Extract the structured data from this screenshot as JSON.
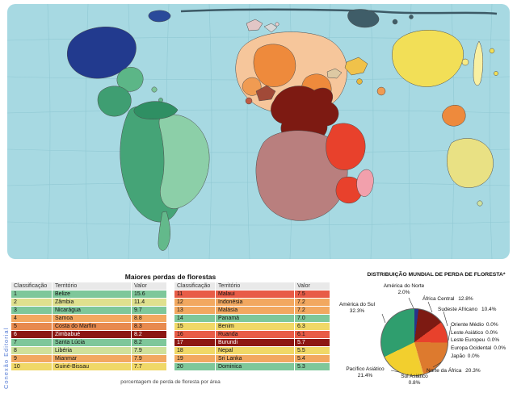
{
  "watermark": "Conexão Editorial",
  "map": {
    "ocean_color": "#a7d9e2"
  },
  "chart_data": [
    {
      "type": "table",
      "title": "Maiores perdas de florestas",
      "footnote": "porcentagem  de perda de floresta por área",
      "columns": [
        "Classificação",
        "Território",
        "Valor"
      ],
      "rows": [
        {
          "rank": "1",
          "territory": "Belize",
          "value": "15.6",
          "color": "#7ec79a"
        },
        {
          "rank": "2",
          "territory": "Zâmbia",
          "value": "11.4",
          "color": "#dfe08e"
        },
        {
          "rank": "3",
          "territory": "Nicarágua",
          "value": "9.7",
          "color": "#7ec79a"
        },
        {
          "rank": "4",
          "territory": "Samoa",
          "value": "8.8",
          "color": "#f2a860"
        },
        {
          "rank": "5",
          "territory": "Costa do Marfim",
          "value": "8.3",
          "color": "#e88a4e"
        },
        {
          "rank": "6",
          "territory": "Zimbabué",
          "value": "8.2",
          "color": "#8c1713",
          "text_color": "#ffffff"
        },
        {
          "rank": "7",
          "territory": "Santa Lúcia",
          "value": "8.2",
          "color": "#7ec79a"
        },
        {
          "rank": "8",
          "territory": "Libéria",
          "value": "7.9",
          "color": "#cfe09a"
        },
        {
          "rank": "9",
          "territory": "Mianmar",
          "value": "7.9",
          "color": "#f2a860"
        },
        {
          "rank": "10",
          "territory": "Guiné-Bissau",
          "value": "7.7",
          "color": "#f0d867"
        }
      ]
    },
    {
      "type": "table",
      "columns": [
        "Classificação",
        "Território",
        "Valor"
      ],
      "rows": [
        {
          "rank": "11",
          "territory": "Malaui",
          "value": "7.5",
          "color": "#e85c47"
        },
        {
          "rank": "12",
          "territory": "Indonésia",
          "value": "7.2",
          "color": "#f2a860"
        },
        {
          "rank": "13",
          "territory": "Malásia",
          "value": "7.2",
          "color": "#f2a860"
        },
        {
          "rank": "14",
          "territory": "Panamá",
          "value": "7.0",
          "color": "#7ec79a"
        },
        {
          "rank": "15",
          "territory": "Benim",
          "value": "6.3",
          "color": "#f0d867"
        },
        {
          "rank": "16",
          "territory": "Ruanda",
          "value": "6.1",
          "color": "#e85c47"
        },
        {
          "rank": "17",
          "territory": "Burundi",
          "value": "5.7",
          "color": "#8c1713",
          "text_color": "#ffffff"
        },
        {
          "rank": "18",
          "territory": "Nepal",
          "value": "5.5",
          "color": "#f0d867"
        },
        {
          "rank": "19",
          "territory": "Sri Lanka",
          "value": "5.4",
          "color": "#f2a860"
        },
        {
          "rank": "20",
          "territory": "Dominica",
          "value": "5.3",
          "color": "#7ec79a"
        }
      ]
    },
    {
      "type": "pie",
      "title": "DISTRIBUIÇÃO MUNDIAL DE PERDA DE FLORESTA*",
      "legend_position": "around",
      "slices": [
        {
          "label": "América do Norte",
          "pct": "2.0%",
          "value": 2.0,
          "color": "#27348b"
        },
        {
          "label": "África Central",
          "pct": "12.8%",
          "value": 12.8,
          "color": "#7d1a12"
        },
        {
          "label": "Sudeste Africano",
          "pct": "10.4%",
          "value": 10.4,
          "color": "#e8412c"
        },
        {
          "label": "Oriente Médio",
          "pct": "0.0%",
          "value": 0.0,
          "color": "#cccccc"
        },
        {
          "label": "Leste Asiático",
          "pct": "0.0%",
          "value": 0.0,
          "color": "#f2df57"
        },
        {
          "label": "Leste Europeu",
          "pct": "0.0%",
          "value": 0.0,
          "color": "#dddddd"
        },
        {
          "label": "Europa Ocidental",
          "pct": "0.0%",
          "value": 0.0,
          "color": "#e3c6c6"
        },
        {
          "label": "Japão",
          "pct": "0.0%",
          "value": 0.0,
          "color": "#f8f0a2"
        },
        {
          "label": "Norte da África",
          "pct": "20.3%",
          "value": 20.3,
          "color": "#dd7a2e"
        },
        {
          "label": "Sul Asiático",
          "pct": "0.8%",
          "value": 0.8,
          "color": "#f0c24a"
        },
        {
          "label": "Pacífico Asiático",
          "pct": "21.4%",
          "value": 21.4,
          "color": "#f2cf2e"
        },
        {
          "label": "América do Sul",
          "pct": "32.3%",
          "value": 32.3,
          "color": "#2f9e6e"
        }
      ]
    }
  ]
}
